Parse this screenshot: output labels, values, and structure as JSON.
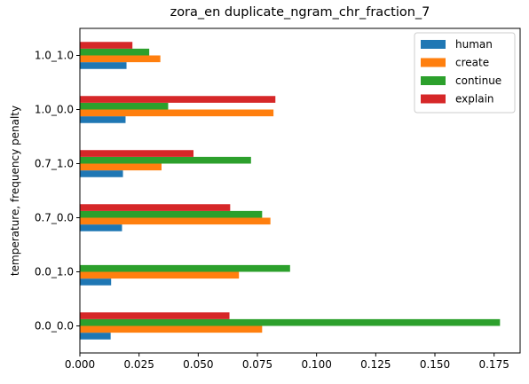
{
  "chart_data": {
    "type": "bar",
    "orientation": "horizontal",
    "title": "zora_en duplicate_ngram_chr_fraction_7",
    "xlabel": "",
    "ylabel": "temperature, frequency penalty",
    "xlim": [
      0,
      0.186
    ],
    "xticks": [
      "0.000",
      "0.025",
      "0.050",
      "0.075",
      "0.100",
      "0.125",
      "0.150",
      "0.175"
    ],
    "grid": false,
    "legend_position": "top-right",
    "categories": [
      "0.0_0.0",
      "0.0_1.0",
      "0.7_0.0",
      "0.7_1.0",
      "1.0_0.0",
      "1.0_1.0"
    ],
    "series": [
      {
        "name": "human",
        "color": "#1f77b4",
        "values": [
          0.013,
          0.0132,
          0.0178,
          0.0182,
          0.0193,
          0.0197
        ]
      },
      {
        "name": "create",
        "color": "#ff7f0e",
        "values": [
          0.077,
          0.0672,
          0.0805,
          0.0345,
          0.0818,
          0.034
        ]
      },
      {
        "name": "continue",
        "color": "#2ca02c",
        "values": [
          0.1775,
          0.0888,
          0.077,
          0.0723,
          0.0373,
          0.0293
        ]
      },
      {
        "name": "explain",
        "color": "#d62728",
        "values": [
          0.0632,
          0.0,
          0.0635,
          0.048,
          0.0826,
          0.0222
        ]
      }
    ]
  }
}
